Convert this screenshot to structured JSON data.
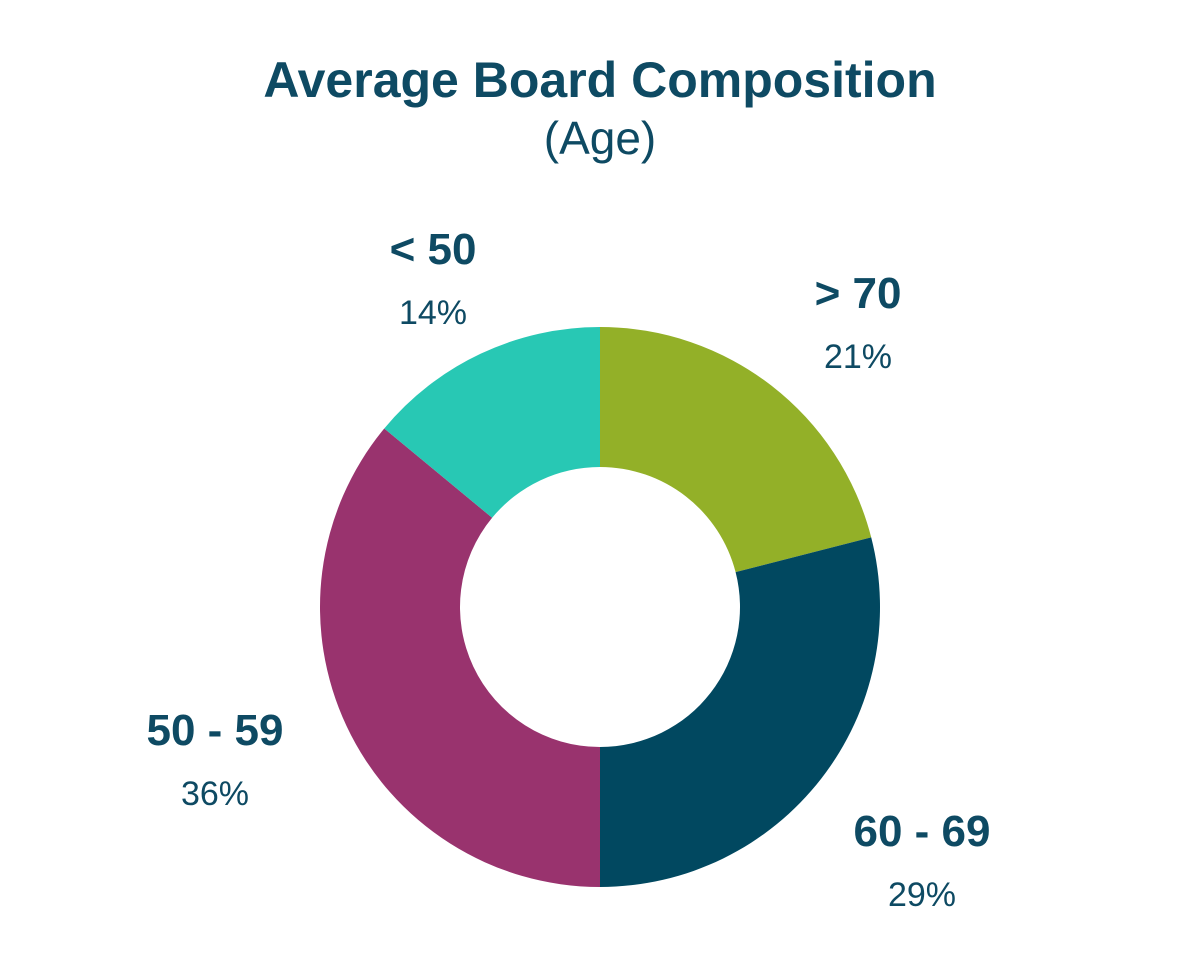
{
  "chart_data": {
    "type": "pie",
    "title": "Average Board Composition",
    "subtitle": "(Age)",
    "slices": [
      {
        "label": "> 70",
        "value": 21,
        "value_label": "21%",
        "color": "#93b028"
      },
      {
        "label": "60 - 69",
        "value": 29,
        "value_label": "29%",
        "color": "#014860"
      },
      {
        "label": "50 - 59",
        "value": 36,
        "value_label": "36%",
        "color": "#99336e"
      },
      {
        "label": "< 50",
        "value": 14,
        "value_label": "14%",
        "color": "#28c8b4"
      }
    ],
    "donut": true,
    "legend": "none"
  }
}
